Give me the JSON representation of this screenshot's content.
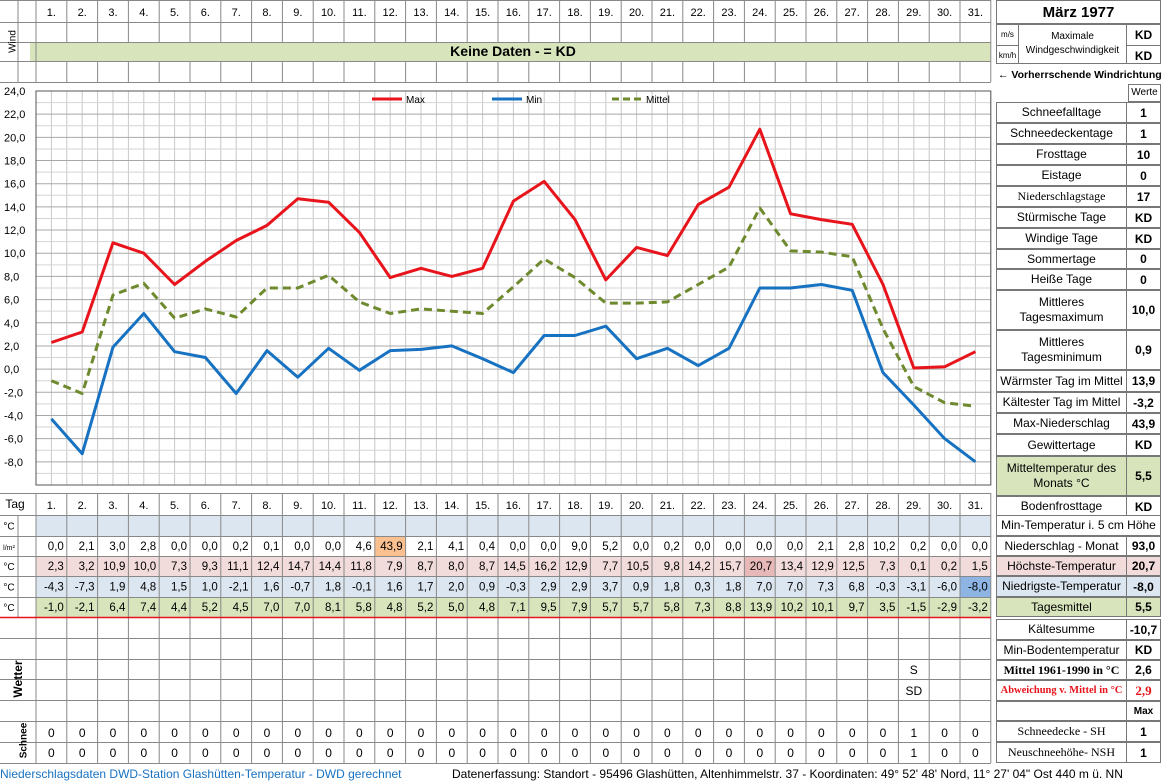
{
  "header": {
    "month_title": "März 1977",
    "wind_label": "Wind",
    "unit_ms": "m/s",
    "unit_kmh": "km/h",
    "max_wind_label": "Maximale Windgeschwindigkeit",
    "max_wind_ms": "KD",
    "max_wind_kmh": "KD",
    "no_data_banner": "Keine Daten -  = KD",
    "prevailing_wind": "← Vorherrschende Windrichtung",
    "werte_label": "Werte"
  },
  "days": [
    "1.",
    "2.",
    "3.",
    "4.",
    "5.",
    "6.",
    "7.",
    "8.",
    "9.",
    "10.",
    "11.",
    "12.",
    "13.",
    "14.",
    "15.",
    "16.",
    "17.",
    "18.",
    "19.",
    "20.",
    "21.",
    "22.",
    "23.",
    "24.",
    "25.",
    "26.",
    "27.",
    "28.",
    "29.",
    "30.",
    "31."
  ],
  "chart_data": {
    "type": "line",
    "x": [
      1,
      2,
      3,
      4,
      5,
      6,
      7,
      8,
      9,
      10,
      11,
      12,
      13,
      14,
      15,
      16,
      17,
      18,
      19,
      20,
      21,
      22,
      23,
      24,
      25,
      26,
      27,
      28,
      29,
      30,
      31
    ],
    "ylim": [
      -10,
      24
    ],
    "yticks": [
      "24,0",
      "22,0",
      "20,0",
      "18,0",
      "16,0",
      "14,0",
      "12,0",
      "10,0",
      "8,0",
      "6,0",
      "4,0",
      "2,0",
      "0,0",
      "-2,0",
      "-4,0",
      "-6,0",
      "-8,0"
    ],
    "legend_position": "top-center",
    "grid": true,
    "series": [
      {
        "name": "Max",
        "color": "#e8141b",
        "style": "solid",
        "values": [
          2.3,
          3.2,
          10.9,
          10.0,
          7.3,
          9.3,
          11.1,
          12.4,
          14.7,
          14.4,
          11.8,
          7.9,
          8.7,
          8.0,
          8.7,
          14.5,
          16.2,
          12.9,
          7.7,
          10.5,
          9.8,
          14.2,
          15.7,
          20.7,
          13.4,
          12.9,
          12.5,
          7.3,
          0.1,
          0.2,
          1.5
        ]
      },
      {
        "name": "Min",
        "color": "#1872c2",
        "style": "solid",
        "values": [
          -4.3,
          -7.3,
          1.9,
          4.8,
          1.5,
          1.0,
          -2.1,
          1.6,
          -0.7,
          1.8,
          -0.1,
          1.6,
          1.7,
          2.0,
          0.9,
          -0.3,
          2.9,
          2.9,
          3.7,
          0.9,
          1.8,
          0.3,
          1.8,
          7.0,
          7.0,
          7.3,
          6.8,
          -0.3,
          -3.1,
          -6.0,
          -8.0
        ]
      },
      {
        "name": "Mittel",
        "color": "#6f8a2e",
        "style": "dashed",
        "values": [
          -1.0,
          -2.1,
          6.4,
          7.4,
          4.4,
          5.2,
          4.5,
          7.0,
          7.0,
          8.1,
          5.8,
          4.8,
          5.2,
          5.0,
          4.8,
          7.1,
          9.5,
          7.9,
          5.7,
          5.7,
          5.8,
          7.3,
          8.8,
          13.9,
          10.2,
          10.1,
          9.7,
          3.5,
          -1.5,
          -2.9,
          -3.2
        ]
      }
    ]
  },
  "table": {
    "tag_label": "Tag",
    "wetter_label": "Wetter",
    "schnee_label": "Schnee",
    "rows": [
      {
        "unit": "°C",
        "label": "Min-Temperatur i. 5 cm Höhe",
        "value": "",
        "cells": [
          "",
          "",
          "",
          "",
          "",
          "",
          "",
          "",
          "",
          "",
          "",
          "",
          "",
          "",
          "",
          "",
          "",
          "",
          "",
          "",
          "",
          "",
          "",
          "",
          "",
          "",
          "",
          "",
          "",
          "",
          ""
        ]
      },
      {
        "unit": "l/m²",
        "label": "Niederschlag - Monat",
        "value": "93,0",
        "cells": [
          "0,0",
          "2,1",
          "3,0",
          "2,8",
          "0,0",
          "0,0",
          "0,2",
          "0,1",
          "0,0",
          "0,0",
          "4,6",
          "43,9",
          "2,1",
          "4,1",
          "0,4",
          "0,0",
          "0,0",
          "9,0",
          "5,2",
          "0,0",
          "0,2",
          "0,0",
          "0,0",
          "0,0",
          "0,0",
          "2,1",
          "2,8",
          "10,2",
          "0,2",
          "0,0",
          "0,0"
        ]
      },
      {
        "unit": "°C",
        "label": "Höchste-Temperatur",
        "value": "20,7",
        "cells": [
          "2,3",
          "3,2",
          "10,9",
          "10,0",
          "7,3",
          "9,3",
          "11,1",
          "12,4",
          "14,7",
          "14,4",
          "11,8",
          "7,9",
          "8,7",
          "8,0",
          "8,7",
          "14,5",
          "16,2",
          "12,9",
          "7,7",
          "10,5",
          "9,8",
          "14,2",
          "15,7",
          "20,7",
          "13,4",
          "12,9",
          "12,5",
          "7,3",
          "0,1",
          "0,2",
          "1,5"
        ]
      },
      {
        "unit": "°C",
        "label": "Niedrigste-Temperatur",
        "value": "-8,0",
        "cells": [
          "-4,3",
          "-7,3",
          "1,9",
          "4,8",
          "1,5",
          "1,0",
          "-2,1",
          "1,6",
          "-0,7",
          "1,8",
          "-0,1",
          "1,6",
          "1,7",
          "2,0",
          "0,9",
          "-0,3",
          "2,9",
          "2,9",
          "3,7",
          "0,9",
          "1,8",
          "0,3",
          "1,8",
          "7,0",
          "7,0",
          "7,3",
          "6,8",
          "-0,3",
          "-3,1",
          "-6,0",
          "-8,0"
        ]
      },
      {
        "unit": "°C",
        "label": "Tagesmittel",
        "value": "5,5",
        "cells": [
          "-1,0",
          "-2,1",
          "6,4",
          "7,4",
          "4,4",
          "5,2",
          "4,5",
          "7,0",
          "7,0",
          "8,1",
          "5,8",
          "4,8",
          "5,2",
          "5,0",
          "4,8",
          "7,1",
          "9,5",
          "7,9",
          "5,7",
          "5,7",
          "5,8",
          "7,3",
          "8,8",
          "13,9",
          "10,2",
          "10,1",
          "9,7",
          "3,5",
          "-1,5",
          "-2,9",
          "-3,2"
        ]
      }
    ],
    "sh": [
      "0",
      "0",
      "0",
      "0",
      "0",
      "0",
      "0",
      "0",
      "0",
      "0",
      "0",
      "0",
      "0",
      "0",
      "0",
      "0",
      "0",
      "0",
      "0",
      "0",
      "0",
      "0",
      "0",
      "0",
      "0",
      "0",
      "0",
      "0",
      "1",
      "0",
      "0"
    ],
    "nsh": [
      "0",
      "0",
      "0",
      "0",
      "0",
      "0",
      "0",
      "0",
      "0",
      "0",
      "0",
      "0",
      "0",
      "0",
      "0",
      "0",
      "0",
      "0",
      "0",
      "0",
      "0",
      "0",
      "0",
      "0",
      "0",
      "0",
      "0",
      "0",
      "1",
      "0",
      "0"
    ],
    "s_label": "S",
    "sd_label": "SD"
  },
  "stats": [
    {
      "label": "Schneefalltage",
      "value": "1"
    },
    {
      "label": "Schneedeckentage",
      "value": "1"
    },
    {
      "label": "Frosttage",
      "value": "10"
    },
    {
      "label": "Eistage",
      "value": "0"
    },
    {
      "label": "Niederschlagstage",
      "value": "17"
    },
    {
      "label": "Stürmische Tage",
      "value": "KD"
    },
    {
      "label": "Windige Tage",
      "value": "KD"
    },
    {
      "label": "Sommertage",
      "value": "0"
    },
    {
      "label": "Heiße Tage",
      "value": "0"
    },
    {
      "label": "Mittleres Tagesmaximum",
      "value": "10,0"
    },
    {
      "label": "Mittleres Tagesminimum",
      "value": "0,9"
    },
    {
      "label": "Wärmster Tag im Mittel",
      "value": "13,9"
    },
    {
      "label": "Kältester Tag im Mittel",
      "value": "-3,2"
    },
    {
      "label": "Max-Niederschlag",
      "value": "43,9"
    },
    {
      "label": "Gewittertage",
      "value": "KD"
    },
    {
      "label": "Mitteltemperatur des Monats °C",
      "value": "5,5"
    },
    {
      "label": "Bodenfrosttage",
      "value": "KD"
    }
  ],
  "lower_stats": {
    "kaeltesumme_label": "Kältesumme",
    "kaeltesumme": "-10,7",
    "min_boden_label": "Min-Bodentemperatur",
    "min_boden": "KD",
    "mittel_label": "Mittel 1961-1990 in °C",
    "mittel": "2,6",
    "abw_label": "Abweichung v. Mittel in °C",
    "abw": "2,9",
    "max_label": "Max",
    "sh_label": "Schneedecke -  SH",
    "sh_max": "1",
    "nsh_label": "Neuschneehöhe- NSH",
    "nsh_max": "1"
  },
  "footer": {
    "source": "Niederschlagsdaten DWD-Station Glashütten-Temperatur -  DWD gerechnet",
    "location": "Datenerfassung: Standort -  95496  Glashütten, Altenhimmelstr. 37 - Koordinaten: 49° 52' 48' Nord,   11° 27' 04\" Ost   440 m ü. NN"
  },
  "colors": {
    "banner_bg": "#d8e4bc",
    "blue_row": "#dce6f1",
    "red_row": "#f2dcdb",
    "green_row": "#d8e4bc",
    "orange_hl": "#fac090",
    "red_hl": "#e6b8b7",
    "blue_hl": "#8db4e2"
  }
}
